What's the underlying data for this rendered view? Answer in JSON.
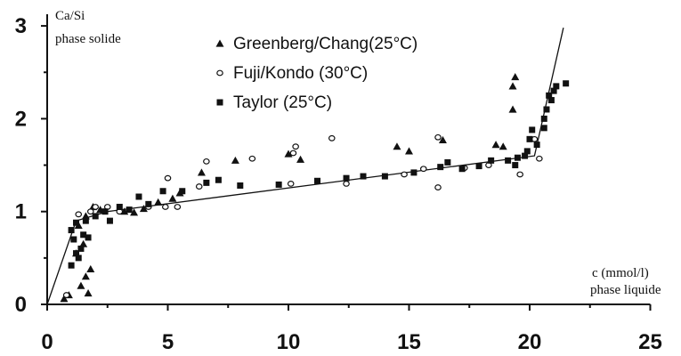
{
  "chart_data": {
    "type": "scatter",
    "title": "",
    "ylabel_line1": "Ca/Si",
    "ylabel_line2": "phase solide",
    "xlabel_line1": "c (mmol/l)",
    "xlabel_line2": "phase liquide",
    "xlim": [
      0,
      25
    ],
    "ylim": [
      0,
      3
    ],
    "xticks": [
      0,
      5,
      10,
      15,
      20,
      25
    ],
    "yticks": [
      0,
      1,
      2,
      3
    ],
    "grid": false,
    "legend_position": "top-center",
    "series": [
      {
        "name": "Greenberg/Chang(25°C)",
        "marker": "triangle",
        "points": [
          [
            0.7,
            0.06
          ],
          [
            0.9,
            0.1
          ],
          [
            1.4,
            0.2
          ],
          [
            1.6,
            0.3
          ],
          [
            1.8,
            0.38
          ],
          [
            1.7,
            0.12
          ],
          [
            1.2,
            0.55
          ],
          [
            1.5,
            0.65
          ],
          [
            1.3,
            0.85
          ],
          [
            1.6,
            0.95
          ],
          [
            1.9,
            1.05
          ],
          [
            2.2,
            1.02
          ],
          [
            3.2,
            1.0
          ],
          [
            3.6,
            0.99
          ],
          [
            4.0,
            1.03
          ],
          [
            4.6,
            1.1
          ],
          [
            5.2,
            1.14
          ],
          [
            5.5,
            1.2
          ],
          [
            6.4,
            1.42
          ],
          [
            7.8,
            1.55
          ],
          [
            10.0,
            1.62
          ],
          [
            10.5,
            1.56
          ],
          [
            14.5,
            1.7
          ],
          [
            15.0,
            1.65
          ],
          [
            16.4,
            1.77
          ],
          [
            18.6,
            1.72
          ],
          [
            18.9,
            1.7
          ],
          [
            19.3,
            2.1
          ],
          [
            19.4,
            2.45
          ],
          [
            19.3,
            2.35
          ]
        ]
      },
      {
        "name": "Fuji/Kondo (30°C)",
        "marker": "open-circle",
        "points": [
          [
            0.8,
            0.1
          ],
          [
            1.3,
            0.97
          ],
          [
            1.8,
            1.0
          ],
          [
            2.0,
            1.05
          ],
          [
            2.5,
            1.05
          ],
          [
            3.0,
            1.0
          ],
          [
            4.2,
            1.05
          ],
          [
            4.9,
            1.05
          ],
          [
            5.4,
            1.05
          ],
          [
            5.0,
            1.36
          ],
          [
            6.3,
            1.27
          ],
          [
            6.6,
            1.54
          ],
          [
            8.5,
            1.57
          ],
          [
            10.2,
            1.63
          ],
          [
            10.3,
            1.7
          ],
          [
            10.1,
            1.3
          ],
          [
            11.8,
            1.79
          ],
          [
            12.4,
            1.3
          ],
          [
            14.8,
            1.4
          ],
          [
            15.6,
            1.46
          ],
          [
            16.2,
            1.8
          ],
          [
            16.2,
            1.26
          ],
          [
            17.3,
            1.47
          ],
          [
            18.3,
            1.5
          ],
          [
            19.6,
            1.4
          ],
          [
            20.4,
            1.57
          ],
          [
            20.2,
            1.78
          ]
        ]
      },
      {
        "name": "Taylor  (25°C)",
        "marker": "filled-square",
        "points": [
          [
            1.0,
            0.42
          ],
          [
            1.2,
            0.55
          ],
          [
            1.1,
            0.7
          ],
          [
            1.5,
            0.75
          ],
          [
            1.0,
            0.8
          ],
          [
            1.2,
            0.88
          ],
          [
            1.4,
            0.6
          ],
          [
            1.3,
            0.5
          ],
          [
            1.7,
            0.72
          ],
          [
            1.6,
            0.9
          ],
          [
            2.0,
            0.95
          ],
          [
            2.4,
            1.0
          ],
          [
            2.6,
            0.9
          ],
          [
            3.0,
            1.05
          ],
          [
            3.4,
            1.02
          ],
          [
            3.8,
            1.16
          ],
          [
            4.2,
            1.08
          ],
          [
            4.8,
            1.22
          ],
          [
            5.6,
            1.22
          ],
          [
            6.6,
            1.31
          ],
          [
            7.1,
            1.34
          ],
          [
            8.0,
            1.28
          ],
          [
            9.6,
            1.29
          ],
          [
            11.2,
            1.33
          ],
          [
            12.4,
            1.36
          ],
          [
            13.1,
            1.38
          ],
          [
            14.0,
            1.38
          ],
          [
            15.2,
            1.42
          ],
          [
            16.3,
            1.48
          ],
          [
            16.6,
            1.53
          ],
          [
            17.2,
            1.46
          ],
          [
            17.9,
            1.49
          ],
          [
            18.4,
            1.55
          ],
          [
            19.1,
            1.55
          ],
          [
            19.4,
            1.5
          ],
          [
            19.5,
            1.58
          ],
          [
            19.8,
            1.6
          ],
          [
            19.9,
            1.65
          ],
          [
            20.0,
            1.78
          ],
          [
            20.1,
            1.88
          ],
          [
            20.3,
            1.72
          ],
          [
            20.6,
            1.9
          ],
          [
            20.6,
            2.0
          ],
          [
            20.7,
            2.1
          ],
          [
            20.8,
            2.25
          ],
          [
            20.9,
            2.2
          ],
          [
            21.0,
            2.3
          ],
          [
            21.1,
            2.35
          ],
          [
            21.5,
            2.38
          ]
        ]
      }
    ],
    "fit_line": [
      [
        0.0,
        0.0
      ],
      [
        1.2,
        0.9
      ],
      [
        2.5,
        1.0
      ],
      [
        20.2,
        1.6
      ],
      [
        21.4,
        2.98
      ]
    ]
  }
}
